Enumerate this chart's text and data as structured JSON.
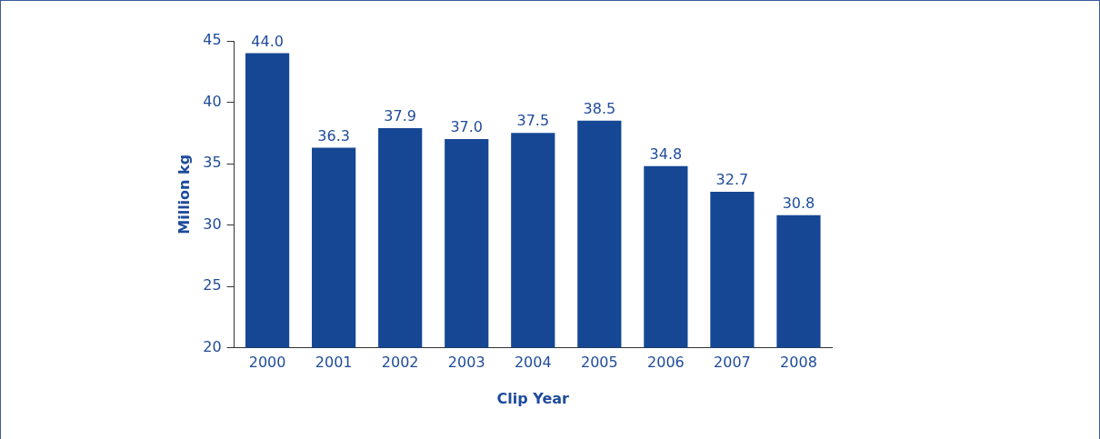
{
  "chart_data": {
    "type": "bar",
    "xlabel": "Clip Year",
    "ylabel": "Million kg",
    "categories": [
      "2000",
      "2001",
      "2002",
      "2003",
      "2004",
      "2005",
      "2006",
      "2007",
      "2008"
    ],
    "values": [
      44.0,
      36.3,
      37.9,
      37.0,
      37.5,
      38.5,
      34.8,
      32.7,
      30.8
    ],
    "value_labels": [
      "44.0",
      "36.3",
      "37.9",
      "37.0",
      "37.5",
      "38.5",
      "34.8",
      "32.7",
      "30.8"
    ],
    "color": "#154794",
    "ylim": [
      20,
      45
    ],
    "yticks": [
      20,
      25,
      30,
      35,
      40,
      45
    ],
    "grid": false,
    "legend": false
  }
}
